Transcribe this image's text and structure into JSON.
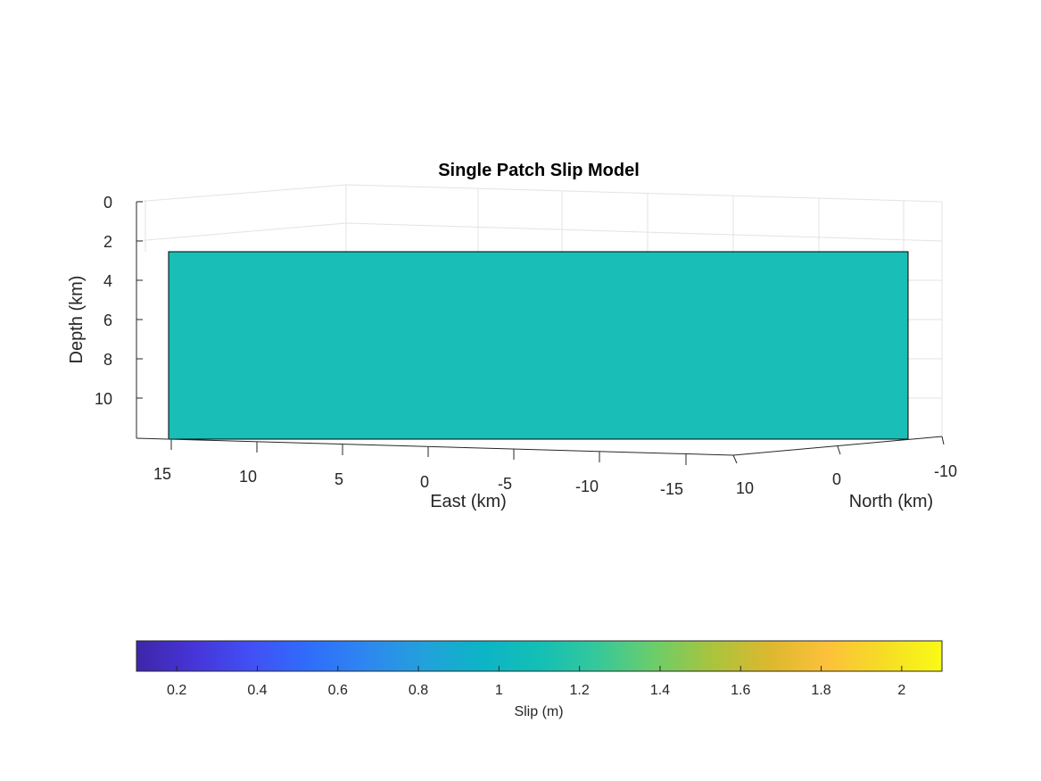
{
  "chart_data": {
    "type": "3d-surface",
    "title": "Single Patch Slip Model",
    "axes": {
      "east": {
        "label": "East (km)",
        "ticks": [
          "15",
          "10",
          "5",
          "0",
          "-5",
          "-10",
          "-15"
        ]
      },
      "north": {
        "label": "North (km)",
        "ticks": [
          "10",
          "0",
          "-10"
        ]
      },
      "depth": {
        "label": "Depth (km)",
        "ticks": [
          "0",
          "2",
          "4",
          "6",
          "8",
          "10"
        ]
      }
    },
    "patches": [
      {
        "name": "",
        "slip": 1.2,
        "depth_top": 2.5,
        "depth_bottom": 11.9,
        "east_extent": [
          -15,
          15
        ],
        "color": "#19bfb6"
      }
    ],
    "colorbar": {
      "label": "Slip (m)",
      "range": [
        0.1,
        2.1
      ],
      "ticks": [
        "0.2",
        "0.4",
        "0.6",
        "0.8",
        "1",
        "1.2",
        "1.4",
        "1.6",
        "1.8",
        "2"
      ],
      "colormap_stops": [
        "#3e26a8",
        "#4635d8",
        "#4150f5",
        "#2f6dfb",
        "#2e87f0",
        "#22a1db",
        "#0cb4c6",
        "#13bfb5",
        "#35c89b",
        "#6ccd6a",
        "#a9c43d",
        "#dcb82f",
        "#fcc13a",
        "#f5dd25",
        "#f9fb15"
      ]
    },
    "grid": true
  }
}
